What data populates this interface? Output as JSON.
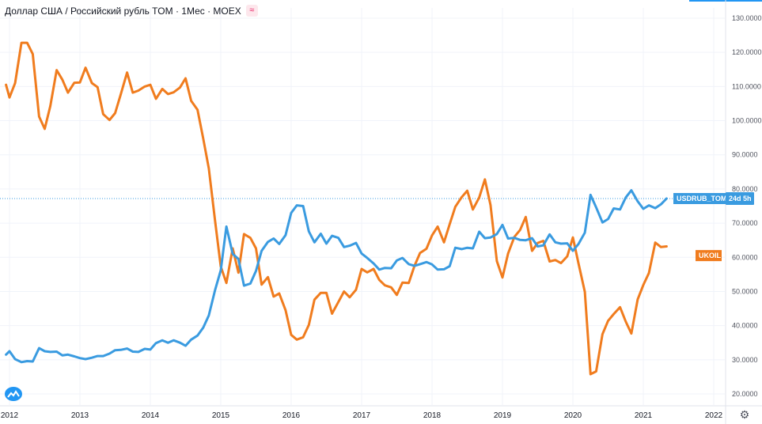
{
  "header": {
    "title": "Доллар США / Российский рубль TOM · 1Мес · MOEX",
    "compare_icon": "compare-icon"
  },
  "colors": {
    "usd": "#3a9be0",
    "oil": "#f07c1e",
    "axis_text": "#50535e",
    "grid": "#f0f3fa"
  },
  "chart_data": {
    "type": "line",
    "y_ticks": [
      "20.0000",
      "30.0000",
      "40.0000",
      "50.0000",
      "60.0000",
      "70.0000",
      "80.0000",
      "90.0000",
      "100.0000",
      "110.0000",
      "120.0000",
      "130.0000"
    ],
    "x_ticks": [
      "2012",
      "2013",
      "2014",
      "2015",
      "2016",
      "2017",
      "2018",
      "2019",
      "2020",
      "2021",
      "2022"
    ],
    "ylim": [
      17,
      133
    ],
    "xlim": [
      2011.95,
      2022.85
    ],
    "grid": true,
    "last_value_line": 77.2,
    "series": [
      {
        "name": "USDRUB_TOM",
        "label": "USDRUB_TOM",
        "badge": "24d 5h",
        "color": "#3a9be0",
        "points": [
          [
            2011.95,
            31.5
          ],
          [
            2012.0,
            32.5
          ],
          [
            2012.08,
            30.2
          ],
          [
            2012.17,
            29.3
          ],
          [
            2012.25,
            29.6
          ],
          [
            2012.33,
            29.5
          ],
          [
            2012.42,
            33.4
          ],
          [
            2012.5,
            32.5
          ],
          [
            2012.58,
            32.3
          ],
          [
            2012.67,
            32.4
          ],
          [
            2012.75,
            31.3
          ],
          [
            2012.83,
            31.5
          ],
          [
            2012.92,
            31.0
          ],
          [
            2013.0,
            30.5
          ],
          [
            2013.08,
            30.2
          ],
          [
            2013.17,
            30.6
          ],
          [
            2013.25,
            31.1
          ],
          [
            2013.33,
            31.1
          ],
          [
            2013.42,
            31.8
          ],
          [
            2013.5,
            32.8
          ],
          [
            2013.58,
            32.9
          ],
          [
            2013.67,
            33.3
          ],
          [
            2013.75,
            32.4
          ],
          [
            2013.83,
            32.3
          ],
          [
            2013.92,
            33.2
          ],
          [
            2014.0,
            33.0
          ],
          [
            2014.08,
            34.9
          ],
          [
            2014.17,
            35.7
          ],
          [
            2014.25,
            35.0
          ],
          [
            2014.33,
            35.7
          ],
          [
            2014.42,
            35.0
          ],
          [
            2014.5,
            34.1
          ],
          [
            2014.58,
            35.9
          ],
          [
            2014.67,
            37.1
          ],
          [
            2014.75,
            39.4
          ],
          [
            2014.83,
            43.0
          ],
          [
            2014.92,
            50.5
          ],
          [
            2015.0,
            56.2
          ],
          [
            2015.08,
            69.0
          ],
          [
            2015.17,
            61.0
          ],
          [
            2015.25,
            59.5
          ],
          [
            2015.33,
            51.7
          ],
          [
            2015.42,
            52.3
          ],
          [
            2015.5,
            56.0
          ],
          [
            2015.58,
            61.9
          ],
          [
            2015.67,
            64.5
          ],
          [
            2015.75,
            65.5
          ],
          [
            2015.83,
            63.9
          ],
          [
            2015.92,
            66.5
          ],
          [
            2016.0,
            73.0
          ],
          [
            2016.08,
            75.2
          ],
          [
            2016.17,
            75.0
          ],
          [
            2016.25,
            67.6
          ],
          [
            2016.33,
            64.4
          ],
          [
            2016.42,
            66.9
          ],
          [
            2016.5,
            64.0
          ],
          [
            2016.58,
            66.3
          ],
          [
            2016.67,
            65.7
          ],
          [
            2016.75,
            63.0
          ],
          [
            2016.83,
            63.4
          ],
          [
            2016.92,
            64.2
          ],
          [
            2017.0,
            61.1
          ],
          [
            2017.08,
            59.8
          ],
          [
            2017.17,
            58.2
          ],
          [
            2017.25,
            56.4
          ],
          [
            2017.33,
            56.9
          ],
          [
            2017.42,
            56.8
          ],
          [
            2017.5,
            59.1
          ],
          [
            2017.58,
            59.8
          ],
          [
            2017.67,
            58.0
          ],
          [
            2017.75,
            57.5
          ],
          [
            2017.83,
            58.0
          ],
          [
            2017.92,
            58.6
          ],
          [
            2018.0,
            57.9
          ],
          [
            2018.08,
            56.4
          ],
          [
            2018.17,
            56.5
          ],
          [
            2018.25,
            57.4
          ],
          [
            2018.33,
            62.8
          ],
          [
            2018.42,
            62.4
          ],
          [
            2018.5,
            62.8
          ],
          [
            2018.58,
            62.6
          ],
          [
            2018.67,
            67.5
          ],
          [
            2018.75,
            65.6
          ],
          [
            2018.83,
            65.8
          ],
          [
            2018.92,
            66.8
          ],
          [
            2019.0,
            69.5
          ],
          [
            2019.08,
            65.5
          ],
          [
            2019.17,
            65.7
          ],
          [
            2019.25,
            65.1
          ],
          [
            2019.33,
            65.0
          ],
          [
            2019.42,
            65.6
          ],
          [
            2019.5,
            63.2
          ],
          [
            2019.58,
            63.5
          ],
          [
            2019.67,
            66.7
          ],
          [
            2019.75,
            64.4
          ],
          [
            2019.83,
            64.0
          ],
          [
            2019.92,
            64.1
          ],
          [
            2020.0,
            61.9
          ],
          [
            2020.08,
            63.9
          ],
          [
            2020.17,
            67.2
          ],
          [
            2020.25,
            78.3
          ],
          [
            2020.33,
            74.6
          ],
          [
            2020.42,
            70.2
          ],
          [
            2020.5,
            71.2
          ],
          [
            2020.58,
            74.3
          ],
          [
            2020.67,
            74.0
          ],
          [
            2020.75,
            77.5
          ],
          [
            2020.83,
            79.6
          ],
          [
            2020.92,
            76.4
          ],
          [
            2021.0,
            74.2
          ],
          [
            2021.08,
            75.2
          ],
          [
            2021.17,
            74.4
          ],
          [
            2021.25,
            75.5
          ],
          [
            2021.33,
            77.2
          ]
        ]
      },
      {
        "name": "UKOIL",
        "label": "UKOIL",
        "color": "#f07c1e",
        "points": [
          [
            2011.95,
            110.5
          ],
          [
            2012.0,
            106.8
          ],
          [
            2012.08,
            111.0
          ],
          [
            2012.17,
            122.8
          ],
          [
            2012.25,
            122.8
          ],
          [
            2012.33,
            119.5
          ],
          [
            2012.42,
            101.2
          ],
          [
            2012.5,
            97.6
          ],
          [
            2012.58,
            104.3
          ],
          [
            2012.67,
            114.8
          ],
          [
            2012.75,
            112.0
          ],
          [
            2012.83,
            108.2
          ],
          [
            2012.92,
            111.1
          ],
          [
            2013.0,
            111.2
          ],
          [
            2013.08,
            115.5
          ],
          [
            2013.17,
            111.0
          ],
          [
            2013.25,
            109.8
          ],
          [
            2013.33,
            101.9
          ],
          [
            2013.42,
            100.2
          ],
          [
            2013.5,
            102.2
          ],
          [
            2013.58,
            107.7
          ],
          [
            2013.67,
            114.1
          ],
          [
            2013.75,
            108.2
          ],
          [
            2013.83,
            108.8
          ],
          [
            2013.92,
            110.0
          ],
          [
            2014.0,
            110.5
          ],
          [
            2014.08,
            106.4
          ],
          [
            2014.17,
            109.3
          ],
          [
            2014.25,
            107.8
          ],
          [
            2014.33,
            108.3
          ],
          [
            2014.42,
            109.7
          ],
          [
            2014.5,
            112.4
          ],
          [
            2014.58,
            105.8
          ],
          [
            2014.67,
            103.2
          ],
          [
            2014.75,
            94.8
          ],
          [
            2014.83,
            86.0
          ],
          [
            2014.92,
            70.5
          ],
          [
            2015.0,
            57.3
          ],
          [
            2015.08,
            52.5
          ],
          [
            2015.17,
            62.6
          ],
          [
            2015.25,
            55.5
          ],
          [
            2015.33,
            66.8
          ],
          [
            2015.42,
            65.7
          ],
          [
            2015.5,
            62.6
          ],
          [
            2015.58,
            52.0
          ],
          [
            2015.67,
            54.2
          ],
          [
            2015.75,
            48.5
          ],
          [
            2015.83,
            49.4
          ],
          [
            2015.92,
            44.5
          ],
          [
            2016.0,
            37.3
          ],
          [
            2016.08,
            35.9
          ],
          [
            2016.17,
            36.6
          ],
          [
            2016.25,
            40.2
          ],
          [
            2016.33,
            47.6
          ],
          [
            2016.42,
            49.6
          ],
          [
            2016.5,
            49.6
          ],
          [
            2016.58,
            43.5
          ],
          [
            2016.67,
            46.9
          ],
          [
            2016.75,
            50.0
          ],
          [
            2016.83,
            48.3
          ],
          [
            2016.92,
            50.5
          ],
          [
            2017.0,
            56.6
          ],
          [
            2017.08,
            55.6
          ],
          [
            2017.17,
            56.6
          ],
          [
            2017.25,
            53.4
          ],
          [
            2017.33,
            51.8
          ],
          [
            2017.42,
            51.2
          ],
          [
            2017.5,
            49.0
          ],
          [
            2017.58,
            52.6
          ],
          [
            2017.67,
            52.5
          ],
          [
            2017.75,
            57.5
          ],
          [
            2017.83,
            61.3
          ],
          [
            2017.92,
            62.5
          ],
          [
            2018.0,
            66.4
          ],
          [
            2018.08,
            69.0
          ],
          [
            2018.17,
            64.4
          ],
          [
            2018.25,
            69.7
          ],
          [
            2018.33,
            74.8
          ],
          [
            2018.42,
            77.6
          ],
          [
            2018.5,
            79.5
          ],
          [
            2018.58,
            74.0
          ],
          [
            2018.67,
            77.5
          ],
          [
            2018.75,
            82.8
          ],
          [
            2018.83,
            75.3
          ],
          [
            2018.92,
            58.9
          ],
          [
            2019.0,
            54.1
          ],
          [
            2019.08,
            61.1
          ],
          [
            2019.17,
            66.0
          ],
          [
            2019.25,
            68.0
          ],
          [
            2019.33,
            71.8
          ],
          [
            2019.42,
            61.9
          ],
          [
            2019.5,
            64.2
          ],
          [
            2019.58,
            64.8
          ],
          [
            2019.67,
            58.8
          ],
          [
            2019.75,
            59.2
          ],
          [
            2019.83,
            58.3
          ],
          [
            2019.92,
            60.3
          ],
          [
            2020.0,
            65.8
          ],
          [
            2020.08,
            58.2
          ],
          [
            2020.17,
            49.9
          ],
          [
            2020.25,
            25.8
          ],
          [
            2020.33,
            26.6
          ],
          [
            2020.42,
            37.5
          ],
          [
            2020.5,
            41.4
          ],
          [
            2020.58,
            43.4
          ],
          [
            2020.67,
            45.4
          ],
          [
            2020.75,
            41.2
          ],
          [
            2020.83,
            37.7
          ],
          [
            2020.92,
            47.7
          ],
          [
            2021.0,
            51.9
          ],
          [
            2021.08,
            55.4
          ],
          [
            2021.17,
            64.3
          ],
          [
            2021.25,
            63.0
          ],
          [
            2021.33,
            63.2
          ]
        ]
      }
    ]
  }
}
